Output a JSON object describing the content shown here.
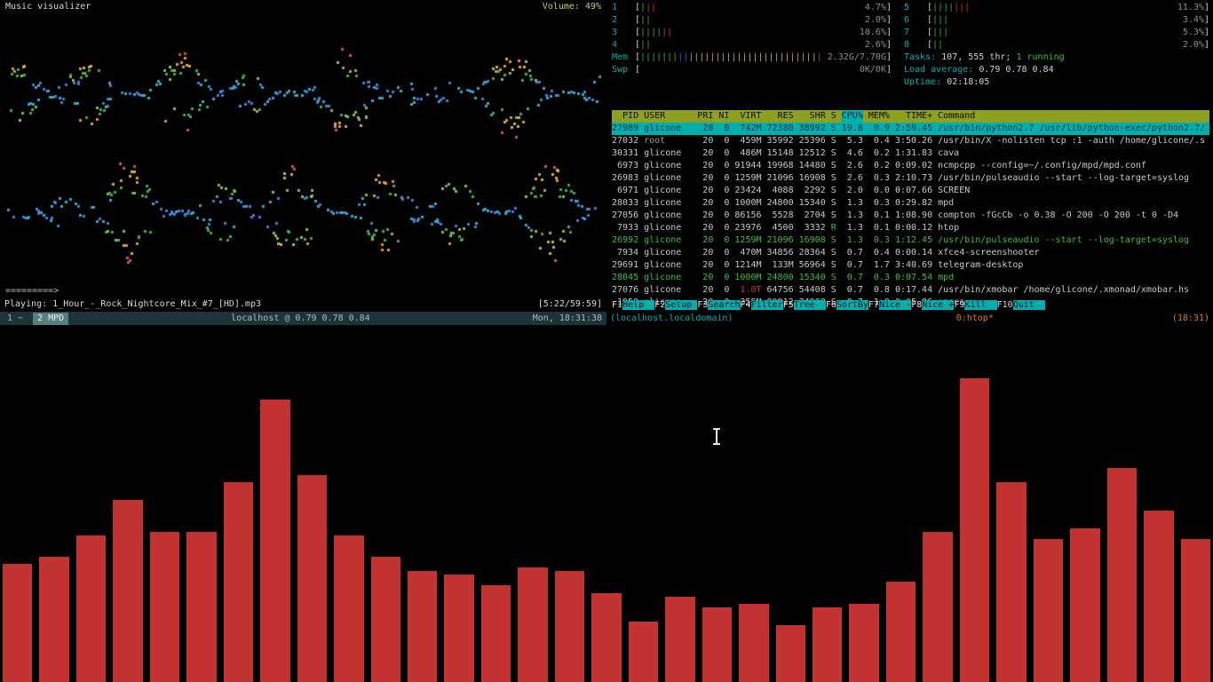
{
  "left_terminal": {
    "title": "Music visualizer",
    "volume": "Volume: 49%",
    "progress_line": "=========>",
    "playing": "Playing: 1_Hour_-_Rock_Nightcore_Mix_#7_[HD].mp3",
    "time": "[5:22/59:59]",
    "statusbar": {
      "window1": "1 ~",
      "window2": "2 MPD",
      "center": "localhost @ 0.79 0.78 0.84",
      "clock": "Mon, 18:31:38"
    },
    "dot_palette": {
      "low": [
        "#3f7fd4",
        "#36a9c9"
      ],
      "mid": [
        "#41ae4b",
        "#86c03e"
      ],
      "high": [
        "#d1b13c",
        "#df923c"
      ],
      "peak": [
        "#da4f45",
        "#cf4f92"
      ]
    }
  },
  "htop": {
    "cpus": [
      {
        "id": "1",
        "pct": "4.7%",
        "segments": [
          [
            "green",
            1
          ],
          [
            "red",
            2
          ]
        ]
      },
      {
        "id": "2",
        "pct": "2.0%",
        "segments": [
          [
            "green",
            2
          ]
        ]
      },
      {
        "id": "3",
        "pct": "10.6%",
        "segments": [
          [
            "green",
            4
          ],
          [
            "red",
            2
          ]
        ]
      },
      {
        "id": "4",
        "pct": "2.6%",
        "segments": [
          [
            "green",
            2
          ]
        ]
      },
      {
        "id": "5",
        "pct": "11.3%",
        "segments": [
          [
            "green",
            4
          ],
          [
            "red",
            3
          ]
        ]
      },
      {
        "id": "6",
        "pct": "3.4%",
        "segments": [
          [
            "green",
            3
          ]
        ]
      },
      {
        "id": "7",
        "pct": "5.3%",
        "segments": [
          [
            "green",
            3
          ]
        ]
      },
      {
        "id": "8",
        "pct": "2.0%",
        "segments": [
          [
            "green",
            2
          ]
        ]
      }
    ],
    "mem": {
      "label": "Mem",
      "value": "2.32G/7.70G",
      "segments": [
        [
          "green",
          7
        ],
        [
          "blue",
          2
        ],
        [
          "yellow",
          24
        ],
        [
          "red",
          1
        ]
      ]
    },
    "swp": {
      "label": "Swp",
      "value": "0K/0K",
      "segments": []
    },
    "tasks_label": "Tasks:",
    "tasks_value": "107, 555 thr;",
    "tasks_running": "1 running",
    "load_label": "Load average:",
    "load_value": "0.79 0.78 0.84",
    "uptime_label": "Uptime:",
    "uptime_value": "02:18:05",
    "columns": [
      "PID",
      "USER",
      "PRI",
      "NI",
      "VIRT",
      "RES",
      "SHR",
      "S",
      "CPU%",
      "MEM%",
      "TIME+",
      "Command"
    ],
    "sort_column_index": 8,
    "rows": [
      {
        "pid": "27989",
        "user": "glicone",
        "pri": "20",
        "ni": "0",
        "virt": "742M",
        "res": "72380",
        "shr": "38992",
        "s": "S",
        "cpu": "19.8",
        "mem": "0.9",
        "time": "2:59.45",
        "cmd": "/usr/bin/python2.7 /usr/lib/python-exec/python2.7/",
        "selected": true
      },
      {
        "pid": "27032",
        "user": "root",
        "pri": "20",
        "ni": "0",
        "virt": "459M",
        "res": "35992",
        "shr": "25396",
        "s": "S",
        "cpu": "5.3",
        "mem": "0.4",
        "time": "3:50.26",
        "cmd": "/usr/bin/X -nolisten tcp :1 -auth /home/glicone/.s"
      },
      {
        "pid": "30331",
        "user": "glicone",
        "pri": "20",
        "ni": "0",
        "virt": "486M",
        "res": "15148",
        "shr": "12512",
        "s": "S",
        "cpu": "4.6",
        "mem": "0.2",
        "time": "1:31.83",
        "cmd": "cava"
      },
      {
        "pid": "6973",
        "user": "glicone",
        "pri": "20",
        "ni": "0",
        "virt": "91944",
        "res": "19968",
        "shr": "14480",
        "s": "S",
        "cpu": "2.6",
        "mem": "0.2",
        "time": "0:09.02",
        "cmd": "ncmpcpp --config=~/.config/mpd/mpd.conf"
      },
      {
        "pid": "26983",
        "user": "glicone",
        "pri": "20",
        "ni": "0",
        "virt": "1259M",
        "res": "21096",
        "shr": "16908",
        "s": "S",
        "cpu": "2.6",
        "mem": "0.3",
        "time": "2:10.73",
        "cmd": "/usr/bin/pulseaudio --start --log-target=syslog"
      },
      {
        "pid": "6971",
        "user": "glicone",
        "pri": "20",
        "ni": "0",
        "virt": "23424",
        "res": "4088",
        "shr": "2292",
        "s": "S",
        "cpu": "2.0",
        "mem": "0.0",
        "time": "0:07.66",
        "cmd": "SCREEN"
      },
      {
        "pid": "28033",
        "user": "glicone",
        "pri": "20",
        "ni": "0",
        "virt": "1000M",
        "res": "24800",
        "shr": "15340",
        "s": "S",
        "cpu": "1.3",
        "mem": "0.3",
        "time": "0:29.82",
        "cmd": "mpd"
      },
      {
        "pid": "27056",
        "user": "glicone",
        "pri": "20",
        "ni": "0",
        "virt": "86156",
        "res": "5528",
        "shr": "2704",
        "s": "S",
        "cpu": "1.3",
        "mem": "0.1",
        "time": "1:08.90",
        "cmd": "compton -fGcCb -o 0.38 -O 200 -O 200 -t 0 -D4"
      },
      {
        "pid": "7933",
        "user": "glicone",
        "pri": "20",
        "ni": "0",
        "virt": "23976",
        "res": "4500",
        "shr": "3332",
        "s": "R",
        "cpu": "1.3",
        "mem": "0.1",
        "time": "0:00.12",
        "cmd": "htop"
      },
      {
        "pid": "26992",
        "user": "glicone",
        "pri": "20",
        "ni": "0",
        "virt": "1259M",
        "res": "21096",
        "shr": "16908",
        "s": "S",
        "cpu": "1.3",
        "mem": "0.3",
        "time": "1:12.45",
        "cmd": "/usr/bin/pulseaudio --start --log-target=syslog",
        "green": true
      },
      {
        "pid": "7934",
        "user": "glicone",
        "pri": "20",
        "ni": "0",
        "virt": "470M",
        "res": "34856",
        "shr": "28364",
        "s": "S",
        "cpu": "0.7",
        "mem": "0.4",
        "time": "0:00.14",
        "cmd": "xfce4-screenshooter"
      },
      {
        "pid": "29691",
        "user": "glicone",
        "pri": "20",
        "ni": "0",
        "virt": "1214M",
        "res": "133M",
        "shr": "56964",
        "s": "S",
        "cpu": "0.7",
        "mem": "1.7",
        "time": "3:40.69",
        "cmd": "telegram-desktop"
      },
      {
        "pid": "28045",
        "user": "glicone",
        "pri": "20",
        "ni": "0",
        "virt": "1000M",
        "res": "24800",
        "shr": "15340",
        "s": "S",
        "cpu": "0.7",
        "mem": "0.3",
        "time": "0:07.54",
        "cmd": "mpd",
        "green": true
      },
      {
        "pid": "27076",
        "user": "glicone",
        "pri": "20",
        "ni": "0",
        "virt": "1.0T",
        "res": "64756",
        "shr": "54408",
        "s": "S",
        "cpu": "0.7",
        "mem": "0.8",
        "time": "0:17.44",
        "cmd": "/usr/bin/xmobar /home/glicone/.xmonad/xmobar.hs",
        "virt_red": true
      },
      {
        "pid": "1950",
        "user": "glicone",
        "pri": "20",
        "ni": "0",
        "virt": "355M",
        "res": "80912",
        "shr": "34908",
        "s": "S",
        "cpu": "0.7",
        "mem": "1.0",
        "time": "0:05.86",
        "cmd": "emacs"
      }
    ],
    "fkeys": [
      {
        "key": "F1",
        "label": "Help"
      },
      {
        "key": "F2",
        "label": "Setup"
      },
      {
        "key": "F3",
        "label": "Search"
      },
      {
        "key": "F4",
        "label": "Filter"
      },
      {
        "key": "F5",
        "label": "Tree"
      },
      {
        "key": "F6",
        "label": "SortBy"
      },
      {
        "key": "F7",
        "label": "Nice -"
      },
      {
        "key": "F8",
        "label": "Nice +"
      },
      {
        "key": "F9",
        "label": "Kill"
      },
      {
        "key": "F10",
        "label": "Quit"
      }
    ]
  },
  "tmux_bar": {
    "host": "(localhost.localdomain)",
    "session": "0:htop*",
    "clock": "(18:31)"
  },
  "cava": {
    "color": "#c23232",
    "values": [
      33,
      35,
      41,
      51,
      42,
      42,
      56,
      79,
      58,
      41,
      35,
      31,
      30,
      27,
      32,
      31,
      25,
      17,
      24,
      21,
      22,
      16,
      21,
      22,
      28,
      42,
      85,
      56,
      40,
      43,
      60,
      48,
      40
    ]
  }
}
